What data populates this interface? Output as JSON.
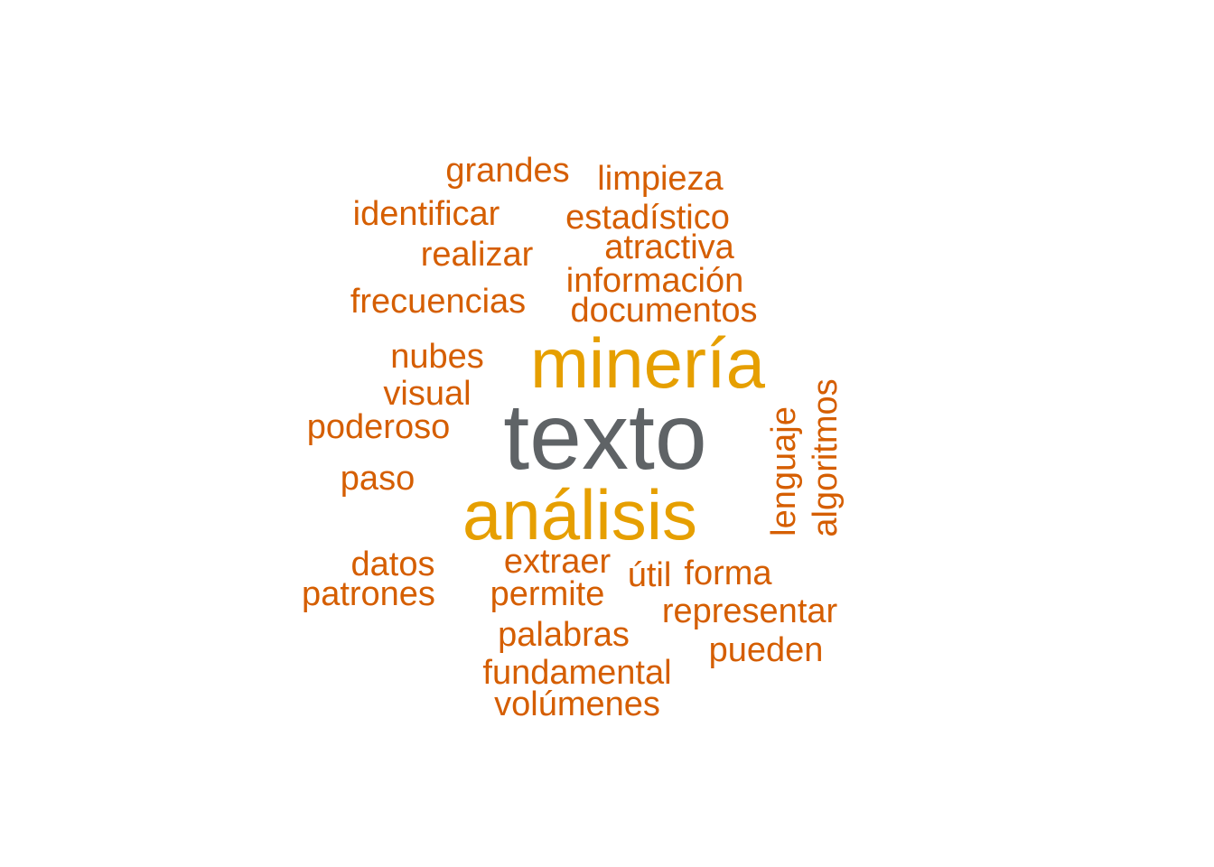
{
  "palette": {
    "small": "#D55E00",
    "medium": "#E69F00",
    "large": "#5F6366"
  },
  "words": [
    {
      "text": "texto",
      "size": "large"
    },
    {
      "text": "minería",
      "size": "medium"
    },
    {
      "text": "análisis",
      "size": "medium"
    },
    {
      "text": "grandes",
      "size": "small"
    },
    {
      "text": "limpieza",
      "size": "small"
    },
    {
      "text": "identificar",
      "size": "small"
    },
    {
      "text": "estadístico",
      "size": "small"
    },
    {
      "text": "atractiva",
      "size": "small"
    },
    {
      "text": "realizar",
      "size": "small"
    },
    {
      "text": "información",
      "size": "small"
    },
    {
      "text": "frecuencias",
      "size": "small"
    },
    {
      "text": "documentos",
      "size": "small"
    },
    {
      "text": "nubes",
      "size": "small"
    },
    {
      "text": "visual",
      "size": "small"
    },
    {
      "text": "poderoso",
      "size": "small"
    },
    {
      "text": "paso",
      "size": "small"
    },
    {
      "text": "lenguaje",
      "size": "small",
      "vertical": true
    },
    {
      "text": "algoritmos",
      "size": "small",
      "vertical": true
    },
    {
      "text": "datos",
      "size": "small"
    },
    {
      "text": "extraer",
      "size": "small"
    },
    {
      "text": "útil",
      "size": "small"
    },
    {
      "text": "forma",
      "size": "small"
    },
    {
      "text": "patrones",
      "size": "small"
    },
    {
      "text": "permite",
      "size": "small"
    },
    {
      "text": "representar",
      "size": "small"
    },
    {
      "text": "palabras",
      "size": "small"
    },
    {
      "text": "pueden",
      "size": "small"
    },
    {
      "text": "fundamental",
      "size": "small"
    },
    {
      "text": "volúmenes",
      "size": "small"
    }
  ]
}
